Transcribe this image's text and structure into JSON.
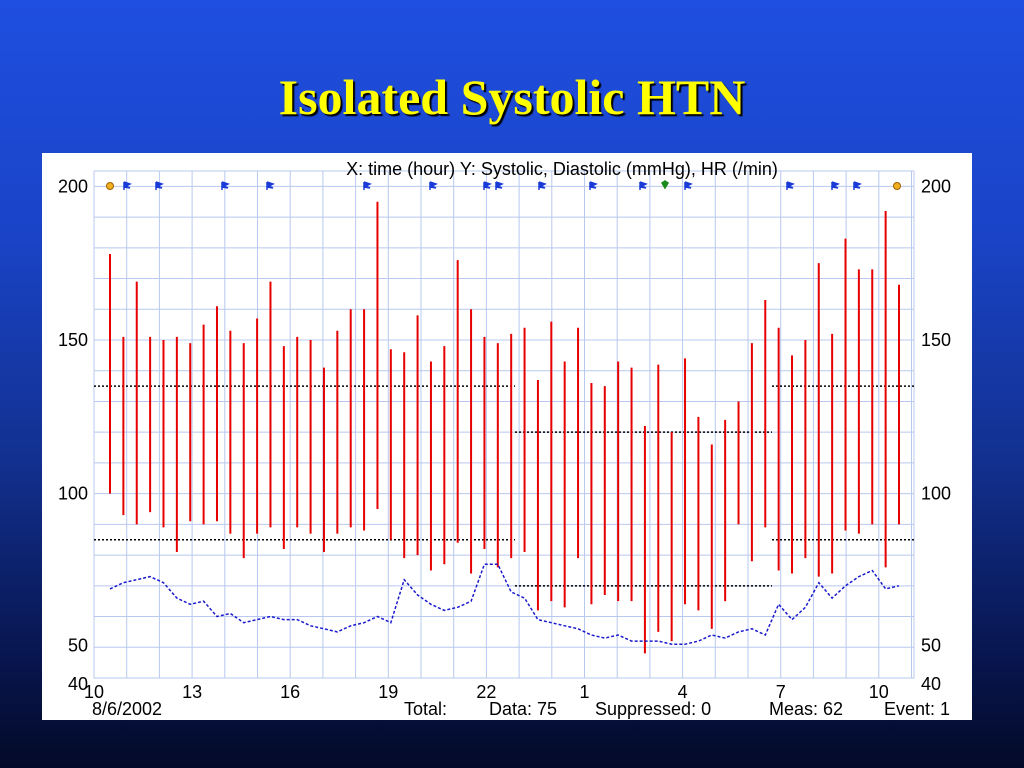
{
  "slide": {
    "title": "Isolated Systolic HTN"
  },
  "chart_data": {
    "type": "bar",
    "title": "X: time (hour)  Y: Systolic, Diastolic (mmHg), HR (/min)",
    "xlabel": "time (hour)",
    "ylabel": "Systolic, Diastolic (mmHg), HR (/min)",
    "ylim": [
      40,
      205
    ],
    "y_ticks": [
      "200",
      "150",
      "100",
      "50",
      "40"
    ],
    "x_tick_labels": [
      "10",
      "13",
      "16",
      "19",
      "22",
      "1",
      "4",
      "7",
      "10"
    ],
    "grid": true,
    "series": [
      {
        "name": "Systolic",
        "values": [
          178,
          151,
          169,
          151,
          150,
          151,
          149,
          155,
          161,
          153,
          149,
          157,
          169,
          148,
          151,
          150,
          141,
          153,
          160,
          160,
          195,
          147,
          146,
          158,
          143,
          148,
          176,
          160,
          151,
          149,
          152,
          154,
          137,
          156,
          143,
          154,
          136,
          135,
          143,
          141,
          122,
          142,
          120,
          144,
          125,
          116,
          124,
          130,
          149,
          163,
          154,
          145,
          150,
          175,
          152,
          183,
          173,
          173,
          192,
          168
        ]
      },
      {
        "name": "Diastolic",
        "values": [
          100,
          93,
          90,
          94,
          89,
          81,
          91,
          90,
          91,
          87,
          79,
          87,
          89,
          82,
          89,
          87,
          81,
          87,
          89,
          88,
          95,
          85,
          79,
          80,
          75,
          77,
          84,
          74,
          82,
          76,
          79,
          81,
          62,
          65,
          63,
          79,
          64,
          67,
          65,
          65,
          48,
          55,
          52,
          64,
          62,
          56,
          65,
          90,
          78,
          89,
          75,
          74,
          79,
          73,
          74,
          88,
          87,
          90,
          76,
          90
        ]
      },
      {
        "name": "HR",
        "values": [
          69,
          71,
          72,
          73,
          71,
          66,
          64,
          65,
          60,
          61,
          58,
          59,
          60,
          59,
          59,
          57,
          56,
          55,
          57,
          58,
          60,
          58,
          72,
          67,
          64,
          62,
          63,
          65,
          77,
          77,
          68,
          66,
          59,
          58,
          57,
          56,
          54,
          53,
          54,
          52,
          52,
          52,
          51,
          51,
          52,
          54,
          53,
          55,
          56,
          54,
          64,
          59,
          63,
          71,
          66,
          70,
          73,
          75,
          69,
          70
        ]
      }
    ],
    "reference_bands": [
      {
        "name": "day",
        "upper": 135,
        "lower": 85
      },
      {
        "name": "night",
        "upper": 120,
        "lower": 70
      }
    ],
    "x_label_date": "8/6/2002",
    "footer": {
      "total_label": "Total:",
      "data": "Data: 75",
      "suppressed": "Suppressed: 0",
      "meas": "Meas: 62",
      "event": "Event: 1"
    },
    "colors": {
      "systolic": "#e60000",
      "hr": "#1a1acc",
      "grid": "#b8c8f0",
      "event_marker": "#1a3ad8",
      "event_marker_special": "#1a8a1a",
      "start_end_marker": "#f0b020"
    }
  }
}
